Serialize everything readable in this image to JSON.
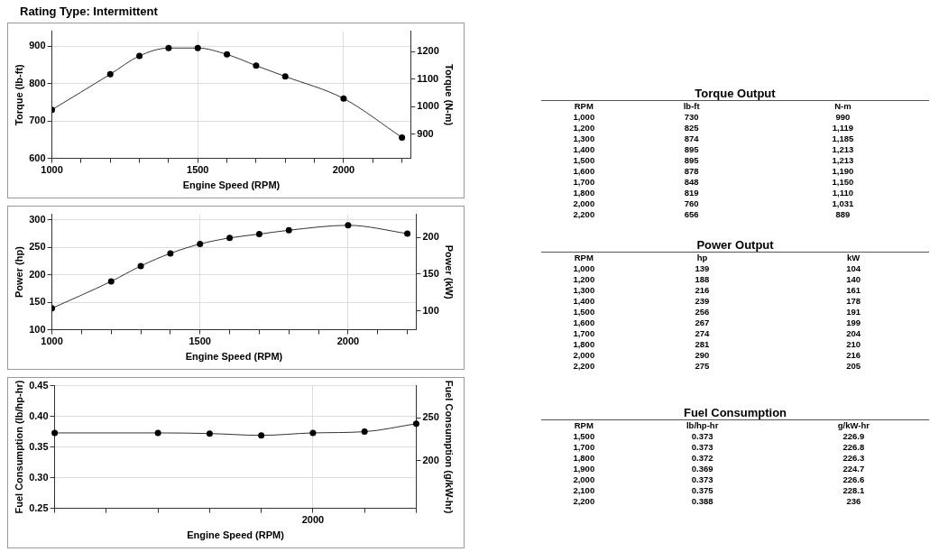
{
  "chart_data": [
    {
      "type": "line",
      "title": "Rating Type: Intermittent",
      "xlabel": "Engine Speed (RPM)",
      "ylabel": "Torque (lb-ft)",
      "y2label": "Torque (N-m)",
      "x": [
        1000,
        1200,
        1300,
        1400,
        1500,
        1600,
        1700,
        1800,
        2000,
        2200
      ],
      "values": [
        730,
        825,
        874,
        895,
        895,
        878,
        848,
        819,
        760,
        656
      ],
      "color": "#333333",
      "xlim": [
        1000,
        2230
      ],
      "xticks": [
        1000,
        {
          "value": 1100,
          "label": null
        },
        {
          "value": 1200,
          "label": null
        },
        {
          "value": 1300,
          "label": null
        },
        {
          "value": 1400,
          "label": null
        },
        1500,
        {
          "value": 1600,
          "label": null
        },
        {
          "value": 1700,
          "label": null
        },
        {
          "value": 1800,
          "label": null
        },
        {
          "value": 1900,
          "label": null
        },
        2000,
        {
          "value": 2100,
          "label": null
        },
        {
          "value": 2200,
          "label": null
        }
      ],
      "ylim": [
        600,
        940
      ],
      "yticks": [
        600,
        700,
        800,
        900
      ],
      "y2lim": [
        813,
        1274
      ],
      "y2ticks": [
        900,
        1000,
        1100,
        1200
      ],
      "grid": true,
      "marker": "circle",
      "line_style": "solid"
    },
    {
      "type": "heatmap",
      "title": "Torque Output",
      "ylabel": "RPM",
      "categories": [
        "lb-ft",
        "N-m"
      ],
      "y_categories": [
        "1,000",
        "1,200",
        "1,300",
        "1,400",
        "1,500",
        "1,600",
        "1,700",
        "1,800",
        "2,000",
        "2,200"
      ],
      "cells": [
        [
          730,
          990
        ],
        [
          825,
          1119
        ],
        [
          874,
          1185
        ],
        [
          895,
          1213
        ],
        [
          895,
          1213
        ],
        [
          878,
          1190
        ],
        [
          848,
          1150
        ],
        [
          819,
          1110
        ],
        [
          760,
          1031
        ],
        [
          656,
          889
        ]
      ],
      "cell_labels": [
        [
          "730",
          "990"
        ],
        [
          "825",
          "1,119"
        ],
        [
          "874",
          "1,185"
        ],
        [
          "895",
          "1,213"
        ],
        [
          "895",
          "1,213"
        ],
        [
          "878",
          "1,190"
        ],
        [
          "848",
          "1,150"
        ],
        [
          "819",
          "1,110"
        ],
        [
          "760",
          "1,031"
        ],
        [
          "656",
          "889"
        ]
      ],
      "data_labels": true
    },
    {
      "type": "line",
      "xlabel": "Engine Speed (RPM)",
      "ylabel": "Power (hp)",
      "y2label": "Power (kW)",
      "x": [
        1000,
        1200,
        1300,
        1400,
        1500,
        1600,
        1700,
        1800,
        2000,
        2200
      ],
      "values": [
        139,
        188,
        216,
        239,
        256,
        267,
        274,
        281,
        290,
        275
      ],
      "color": "#333333",
      "xlim": [
        1000,
        2230
      ],
      "xticks": [
        1000,
        {
          "value": 1100,
          "label": null
        },
        {
          "value": 1200,
          "label": null
        },
        {
          "value": 1300,
          "label": null
        },
        {
          "value": 1400,
          "label": null
        },
        1500,
        {
          "value": 1600,
          "label": null
        },
        {
          "value": 1700,
          "label": null
        },
        {
          "value": 1800,
          "label": null
        },
        {
          "value": 1900,
          "label": null
        },
        2000,
        {
          "value": 2100,
          "label": null
        },
        {
          "value": 2200,
          "label": null
        }
      ],
      "ylim": [
        100,
        310
      ],
      "yticks": [
        100,
        150,
        200,
        250,
        300
      ],
      "y2lim": [
        74.6,
        231.2
      ],
      "y2ticks": [
        100,
        150,
        200
      ],
      "grid": true,
      "marker": "circle",
      "line_style": "solid"
    },
    {
      "type": "heatmap",
      "title": "Power Output",
      "ylabel": "RPM",
      "categories": [
        "hp",
        "kW"
      ],
      "y_categories": [
        "1,000",
        "1,200",
        "1,300",
        "1,400",
        "1,500",
        "1,600",
        "1,700",
        "1,800",
        "2,000",
        "2,200"
      ],
      "cells": [
        [
          139,
          104
        ],
        [
          188,
          140
        ],
        [
          216,
          161
        ],
        [
          239,
          178
        ],
        [
          256,
          191
        ],
        [
          267,
          199
        ],
        [
          274,
          204
        ],
        [
          281,
          210
        ],
        [
          290,
          216
        ],
        [
          275,
          205
        ]
      ],
      "data_labels": true
    },
    {
      "type": "line",
      "xlabel": "Engine Speed (RPM)",
      "ylabel": "Fuel Consumption (lb/hp-hr)",
      "y2label": "Fuel Consumption (g/kW-hr)",
      "categories": [
        null,
        null,
        null,
        null,
        null,
        "2000",
        null,
        null
      ],
      "values": [
        0.373,
        null,
        0.373,
        0.372,
        0.369,
        0.373,
        0.375,
        0.388
      ],
      "color": "#333333",
      "ylim": [
        0.25,
        0.45
      ],
      "yticks": [
        0.25,
        {
          "value": 0.3,
          "label": "0.30"
        },
        0.35,
        {
          "value": 0.4,
          "label": "0.40"
        },
        0.45
      ],
      "y2lim": [
        145,
        287
      ],
      "y2ticks": [
        200,
        250
      ],
      "grid": true,
      "marker": "circle",
      "line_style": "solid"
    },
    {
      "type": "heatmap",
      "title": "Fuel Consumption",
      "ylabel": "RPM",
      "categories": [
        "lb/hp-hr",
        "g/kW-hr"
      ],
      "y_categories": [
        "1,500",
        "1,700",
        "1,800",
        "1,900",
        "2,000",
        "2,100",
        "2,200"
      ],
      "cells": [
        [
          0.373,
          226.9
        ],
        [
          0.373,
          226.8
        ],
        [
          0.372,
          226.3
        ],
        [
          0.369,
          224.7
        ],
        [
          0.373,
          226.6
        ],
        [
          0.375,
          228.1
        ],
        [
          0.388,
          236
        ]
      ],
      "data_labels": true
    }
  ]
}
